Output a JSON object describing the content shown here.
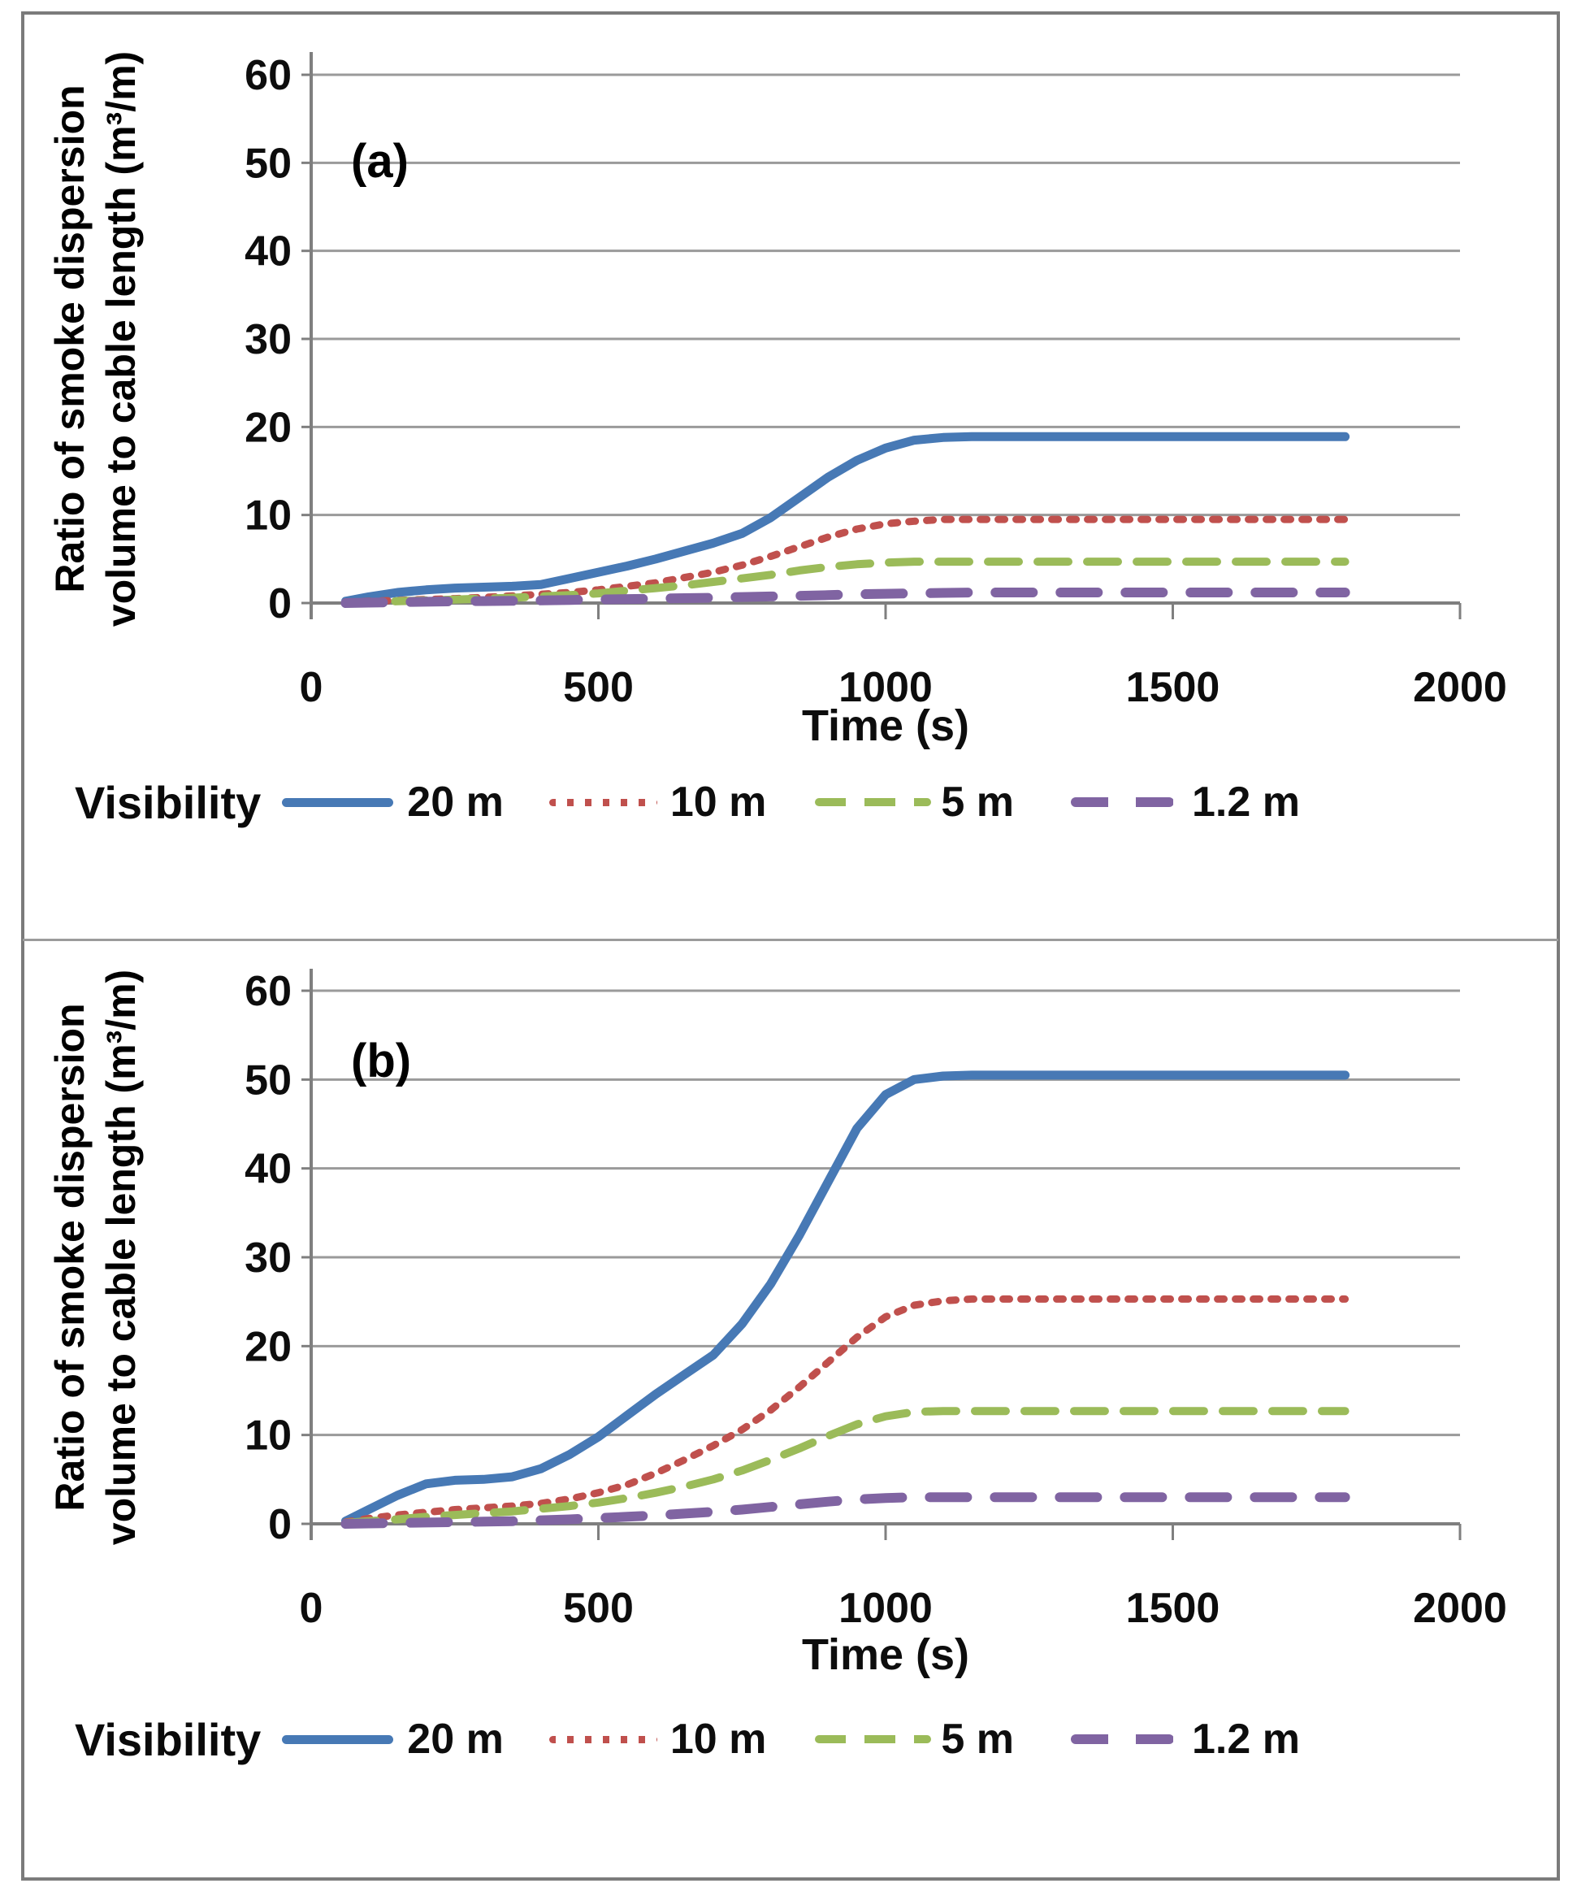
{
  "figure": {
    "border_color": "#7b7b7b",
    "divider_color": "#9b9b9b",
    "gridline_color": "#9a9a9a",
    "axis_color": "#7f7f7f",
    "text_color": "#0d0d0d"
  },
  "chart_data": [
    {
      "type": "line",
      "panel_label": "(a)",
      "xlabel": "Time (s)",
      "ylabel_line1": "Ratio of smoke dispersion",
      "ylabel_line2": "volume to cable length (m³/m)",
      "legend_title": "Visibility",
      "xlim": [
        0,
        2000
      ],
      "ylim": [
        0,
        60
      ],
      "xticks": [
        0,
        500,
        1000,
        1500,
        2000
      ],
      "yticks": [
        0,
        10,
        20,
        30,
        40,
        50,
        60
      ],
      "grid": true,
      "legend_position": "bottom",
      "x": [
        60,
        100,
        150,
        200,
        250,
        300,
        350,
        400,
        450,
        500,
        550,
        600,
        650,
        700,
        750,
        800,
        850,
        900,
        950,
        1000,
        1050,
        1100,
        1150,
        1200,
        1250,
        1300,
        1350,
        1400,
        1450,
        1500,
        1550,
        1600,
        1650,
        1700,
        1750,
        1800
      ],
      "series": [
        {
          "name": "20 m",
          "color": "#4779b5",
          "style": "solid",
          "values": [
            0.2,
            0.7,
            1.2,
            1.5,
            1.7,
            1.8,
            1.9,
            2.1,
            2.8,
            3.5,
            4.2,
            5.0,
            5.9,
            6.8,
            7.9,
            9.7,
            12.0,
            14.3,
            16.2,
            17.6,
            18.5,
            18.8,
            18.9,
            18.9,
            18.9,
            18.9,
            18.9,
            18.9,
            18.9,
            18.9,
            18.9,
            18.9,
            18.9,
            18.9,
            18.9,
            18.9
          ]
        },
        {
          "name": "10 m",
          "color": "#c0504d",
          "style": "dotted",
          "values": [
            0.1,
            0.2,
            0.3,
            0.4,
            0.5,
            0.65,
            0.8,
            1.0,
            1.2,
            1.5,
            1.9,
            2.3,
            2.9,
            3.5,
            4.3,
            5.3,
            6.4,
            7.5,
            8.4,
            9.0,
            9.3,
            9.5,
            9.5,
            9.5,
            9.5,
            9.5,
            9.5,
            9.5,
            9.5,
            9.5,
            9.5,
            9.5,
            9.5,
            9.5,
            9.5,
            9.5
          ]
        },
        {
          "name": "5 m",
          "color": "#9bbb59",
          "style": "dashed",
          "values": [
            0.05,
            0.1,
            0.2,
            0.3,
            0.4,
            0.5,
            0.6,
            0.75,
            0.9,
            1.1,
            1.4,
            1.7,
            2.0,
            2.4,
            2.8,
            3.2,
            3.7,
            4.1,
            4.4,
            4.6,
            4.7,
            4.7,
            4.7,
            4.7,
            4.7,
            4.7,
            4.7,
            4.7,
            4.7,
            4.7,
            4.7,
            4.7,
            4.7,
            4.7,
            4.7,
            4.7
          ]
        },
        {
          "name": "1.2 m",
          "color": "#8064a2",
          "style": "long-dash",
          "values": [
            0.0,
            0.05,
            0.1,
            0.15,
            0.2,
            0.22,
            0.25,
            0.3,
            0.35,
            0.4,
            0.45,
            0.5,
            0.55,
            0.6,
            0.68,
            0.75,
            0.82,
            0.9,
            1.0,
            1.05,
            1.1,
            1.15,
            1.2,
            1.2,
            1.2,
            1.2,
            1.2,
            1.2,
            1.2,
            1.2,
            1.2,
            1.2,
            1.2,
            1.2,
            1.2,
            1.2
          ]
        }
      ]
    },
    {
      "type": "line",
      "panel_label": "(b)",
      "xlabel": "Time (s)",
      "ylabel_line1": "Ratio of smoke dispersion",
      "ylabel_line2": "volume to cable length (m³/m)",
      "legend_title": "Visibility",
      "xlim": [
        0,
        2000
      ],
      "ylim": [
        0,
        60
      ],
      "xticks": [
        0,
        500,
        1000,
        1500,
        2000
      ],
      "yticks": [
        0,
        10,
        20,
        30,
        40,
        50,
        60
      ],
      "grid": true,
      "legend_position": "bottom",
      "x": [
        60,
        100,
        150,
        200,
        250,
        300,
        350,
        400,
        450,
        500,
        550,
        600,
        650,
        700,
        750,
        800,
        850,
        900,
        950,
        1000,
        1050,
        1100,
        1150,
        1200,
        1250,
        1300,
        1350,
        1400,
        1450,
        1500,
        1550,
        1600,
        1650,
        1700,
        1750,
        1800
      ],
      "series": [
        {
          "name": "20 m",
          "color": "#4779b5",
          "style": "solid",
          "values": [
            0.3,
            1.6,
            3.2,
            4.5,
            4.9,
            5.0,
            5.3,
            6.2,
            7.8,
            9.8,
            12.2,
            14.6,
            16.8,
            19.0,
            22.5,
            27.0,
            32.5,
            38.5,
            44.5,
            48.3,
            50.0,
            50.4,
            50.5,
            50.5,
            50.5,
            50.5,
            50.5,
            50.5,
            50.5,
            50.5,
            50.5,
            50.5,
            50.5,
            50.5,
            50.5,
            50.5
          ]
        },
        {
          "name": "10 m",
          "color": "#c0504d",
          "style": "dotted",
          "values": [
            0.2,
            0.6,
            1.0,
            1.3,
            1.6,
            1.8,
            2.0,
            2.3,
            2.8,
            3.5,
            4.4,
            5.7,
            7.2,
            8.8,
            10.6,
            12.8,
            15.4,
            18.2,
            21.0,
            23.3,
            24.6,
            25.1,
            25.3,
            25.3,
            25.3,
            25.3,
            25.3,
            25.3,
            25.3,
            25.3,
            25.3,
            25.3,
            25.3,
            25.3,
            25.3,
            25.3
          ]
        },
        {
          "name": "5 m",
          "color": "#9bbb59",
          "style": "dashed",
          "values": [
            0.1,
            0.3,
            0.5,
            0.8,
            1.0,
            1.2,
            1.4,
            1.7,
            2.0,
            2.4,
            2.9,
            3.5,
            4.2,
            5.0,
            6.0,
            7.2,
            8.5,
            9.9,
            11.2,
            12.1,
            12.6,
            12.7,
            12.7,
            12.7,
            12.7,
            12.7,
            12.7,
            12.7,
            12.7,
            12.7,
            12.7,
            12.7,
            12.7,
            12.7,
            12.7,
            12.7
          ]
        },
        {
          "name": "1.2 m",
          "color": "#8064a2",
          "style": "long-dash",
          "values": [
            0.0,
            0.05,
            0.1,
            0.15,
            0.2,
            0.25,
            0.3,
            0.4,
            0.5,
            0.65,
            0.8,
            0.95,
            1.15,
            1.35,
            1.6,
            1.9,
            2.2,
            2.5,
            2.75,
            2.9,
            3.0,
            3.0,
            3.0,
            3.0,
            3.0,
            3.0,
            3.0,
            3.0,
            3.0,
            3.0,
            3.0,
            3.0,
            3.0,
            3.0,
            3.0,
            3.0
          ]
        }
      ]
    }
  ]
}
